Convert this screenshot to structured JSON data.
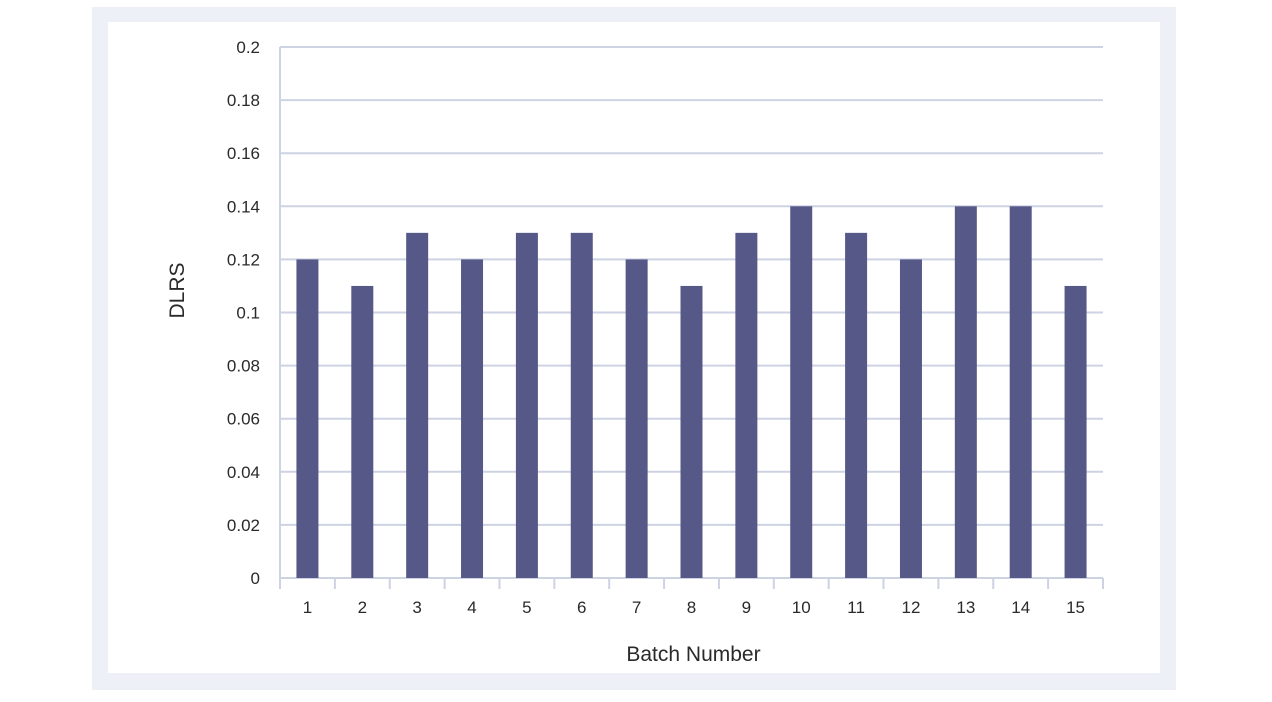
{
  "chart_data": {
    "type": "bar",
    "title": "",
    "xlabel": "Batch Number",
    "ylabel": "DLRS",
    "categories": [
      "1",
      "2",
      "3",
      "4",
      "5",
      "6",
      "7",
      "8",
      "9",
      "10",
      "11",
      "12",
      "13",
      "14",
      "15"
    ],
    "values": [
      0.12,
      0.11,
      0.13,
      0.12,
      0.13,
      0.13,
      0.12,
      0.11,
      0.13,
      0.14,
      0.13,
      0.12,
      0.14,
      0.14,
      0.11
    ],
    "ylim": [
      0,
      0.2
    ],
    "yticks": [
      "0",
      "0.02",
      "0.04",
      "0.06",
      "0.08",
      "0.1",
      "0.12",
      "0.14",
      "0.16",
      "0.18",
      "0.2"
    ],
    "grid": true,
    "legend": "none",
    "colors": {
      "bar": "#565888",
      "grid": "#cdd3e3",
      "frame": "#eef0f8"
    }
  }
}
